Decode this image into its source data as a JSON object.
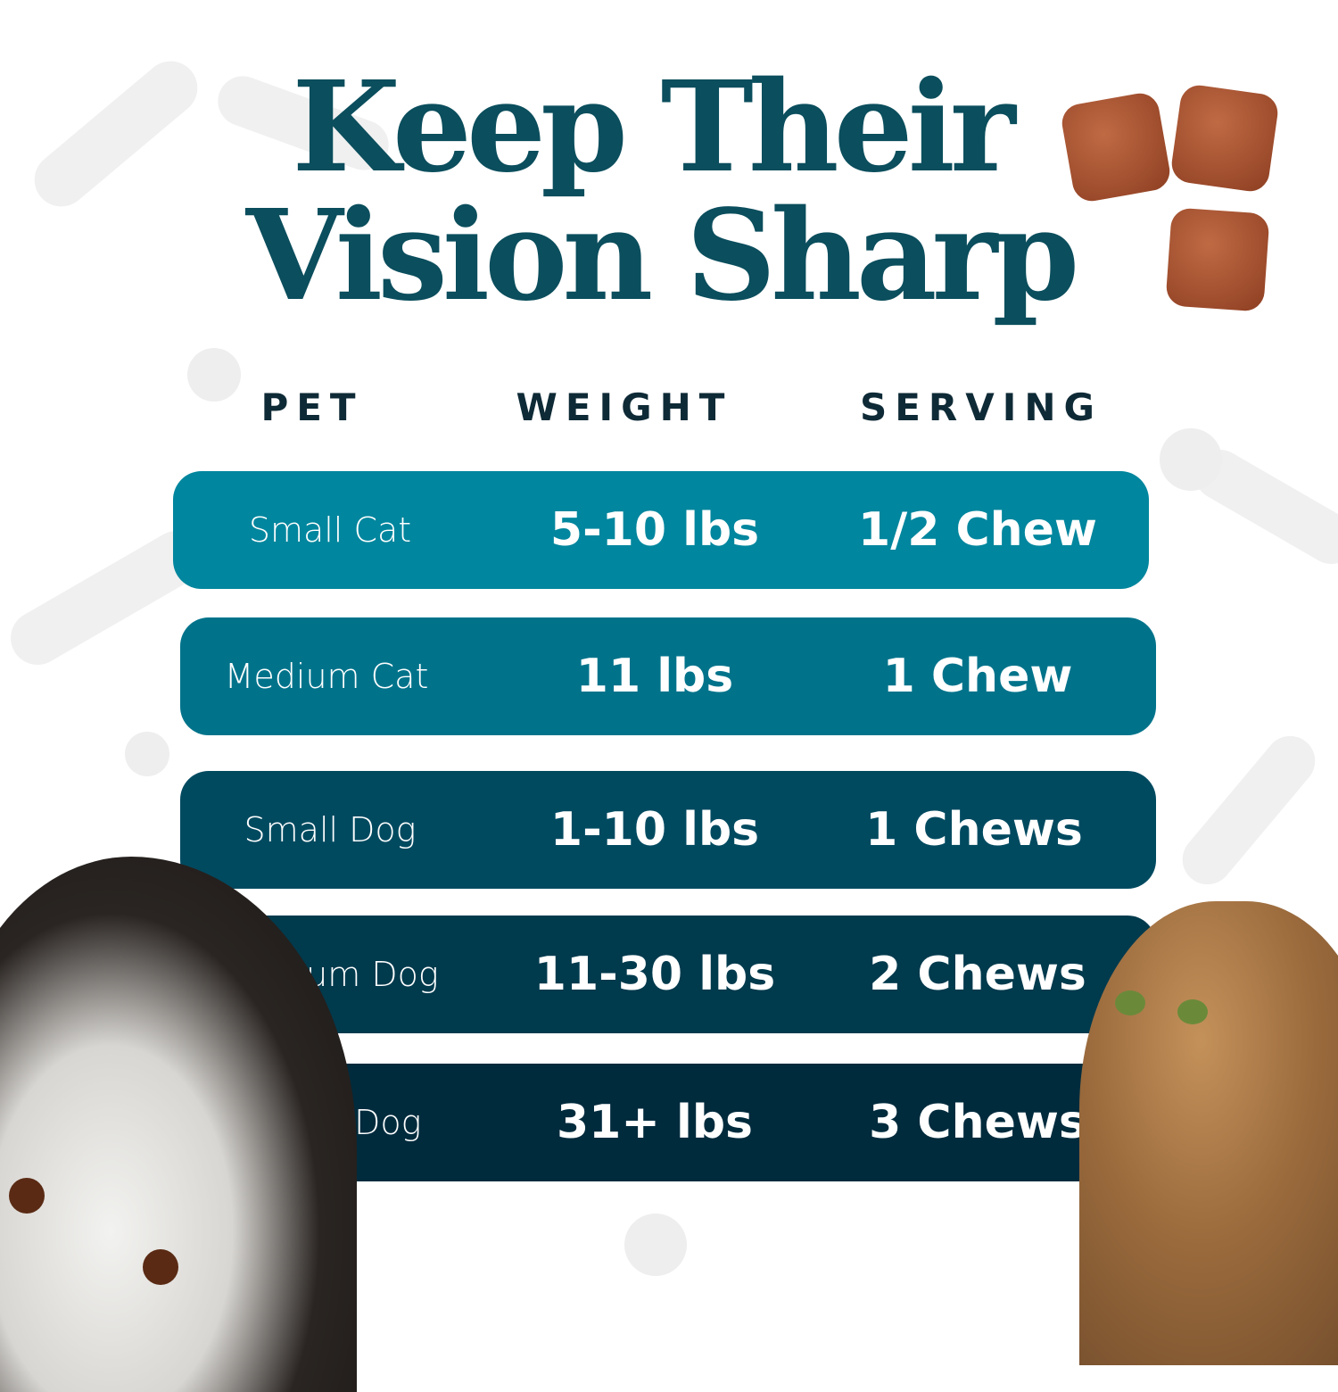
{
  "title": {
    "line1": "Keep Their",
    "line2": "Vision Sharp"
  },
  "headers": {
    "pet": "PET",
    "weight": "WEIGHT",
    "serving": "SERVING"
  },
  "rows": [
    {
      "pet": "Small Cat",
      "weight": "5-10 lbs",
      "serving": "1/2 Chew",
      "color": "#00869e"
    },
    {
      "pet": "Medium Cat",
      "weight": "11 lbs",
      "serving": "1 Chew",
      "color": "#00738b"
    },
    {
      "pet": "Small Dog",
      "weight": "1-10  lbs",
      "serving": "1 Chews",
      "color": "#004a60"
    },
    {
      "pet": "Medium Dog",
      "weight": "11-30  lbs",
      "serving": "2 Chews",
      "color": "#003a4d"
    },
    {
      "pet": "Large Dog",
      "weight": "31+  lbs",
      "serving": "3 Chews",
      "color": "#002b3d"
    }
  ],
  "colors": {
    "title": "#0b4e5d",
    "header": "#0e2a36"
  }
}
